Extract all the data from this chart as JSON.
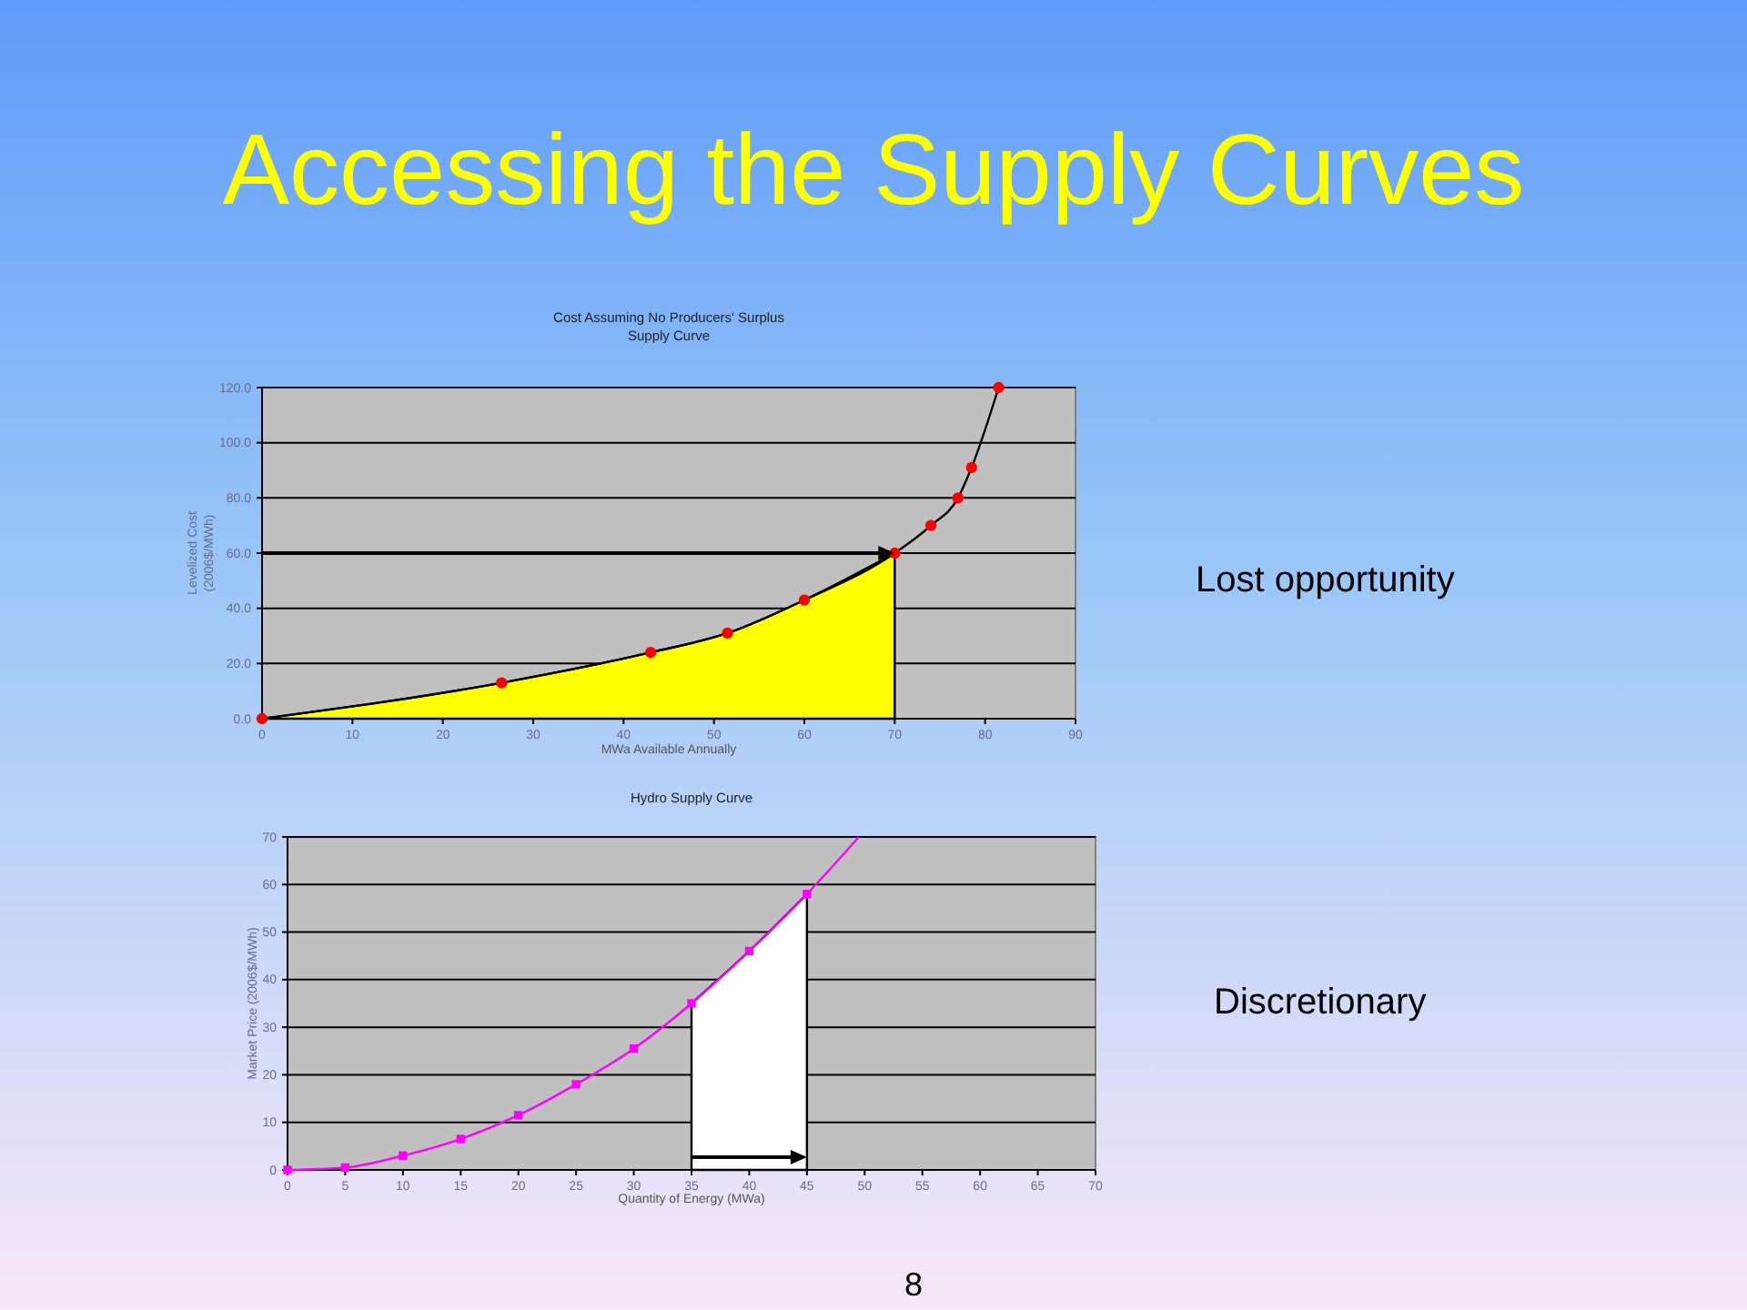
{
  "chart_data": [
    {
      "type": "other",
      "title": "Accessing the Supply Curves",
      "annotations": [
        "8"
      ]
    },
    {
      "type": "line",
      "title": "Cost Assuming No Producers' Surplus\nSupply Curve",
      "xlabel": "MWa Available Annually",
      "ylabel": "Levelized Cost\n(2006$/MWh)",
      "annotations": [
        "Lost opportunity"
      ],
      "x": [
        0,
        26.5,
        43,
        51.5,
        60,
        70,
        74,
        77,
        78.5,
        81.5
      ],
      "series": [
        {
          "type": "area",
          "color": "#ffff00",
          "x": [
            0,
            26.5,
            43,
            51.5,
            60,
            70
          ],
          "values": [
            0,
            13,
            24,
            31,
            43,
            60
          ]
        },
        {
          "type": "line",
          "color": "#000000",
          "marker": "none",
          "values": [
            0,
            13,
            24,
            31,
            43,
            60,
            70,
            80,
            91,
            120
          ]
        },
        {
          "type": "scatter",
          "color": "#ff0000",
          "marker": "circle",
          "values": [
            0,
            13,
            24,
            31,
            43,
            60,
            70,
            80,
            91,
            120
          ]
        }
      ],
      "xlim": [
        0,
        90
      ],
      "xticks": [
        0,
        10,
        20,
        30,
        40,
        50,
        60,
        70,
        80,
        90
      ],
      "ylim": [
        0,
        120
      ],
      "yticks": [
        {
          "value": 0,
          "label": "0.0"
        },
        {
          "value": 20,
          "label": "20.0"
        },
        {
          "value": 40,
          "label": "40.0"
        },
        {
          "value": 60,
          "label": "60.0"
        },
        {
          "value": 80,
          "label": "80.0"
        },
        {
          "value": 100,
          "label": "100.0"
        },
        {
          "value": 120,
          "label": "120.0"
        }
      ],
      "grid": "y"
    },
    {
      "type": "line",
      "title": "Hydro Supply Curve",
      "xlabel": "Quantity of Energy (MWa)",
      "ylabel": "Market Price (2006$/MWh)",
      "annotations": [
        "Discretionary"
      ],
      "series": [
        {
          "type": "area",
          "color": "#ffffff",
          "x": [
            35,
            40,
            45
          ],
          "values": [
            35,
            46,
            58
          ]
        },
        {
          "type": "line",
          "color": "#ff00ff",
          "marker": "none",
          "x": [
            0,
            5,
            10,
            15,
            20,
            25,
            30,
            35,
            40,
            45,
            49.5
          ],
          "values": [
            0,
            0.5,
            3,
            6.5,
            11.5,
            18,
            25.5,
            35,
            46,
            58,
            70
          ]
        },
        {
          "type": "scatter",
          "color": "#ff00ff",
          "marker": "square",
          "x": [
            0,
            5,
            10,
            15,
            20,
            25,
            30,
            35,
            40,
            45
          ],
          "values": [
            0,
            0.5,
            3,
            6.5,
            11.5,
            18,
            25.5,
            35,
            46,
            58
          ]
        }
      ],
      "xlim": [
        0,
        70
      ],
      "xticks": [
        0,
        5,
        10,
        15,
        20,
        25,
        30,
        35,
        40,
        45,
        50,
        55,
        60,
        65,
        70
      ],
      "ylim": [
        0,
        70
      ],
      "yticks": [
        0,
        10,
        20,
        30,
        40,
        50,
        60,
        70
      ],
      "grid": "y"
    }
  ]
}
